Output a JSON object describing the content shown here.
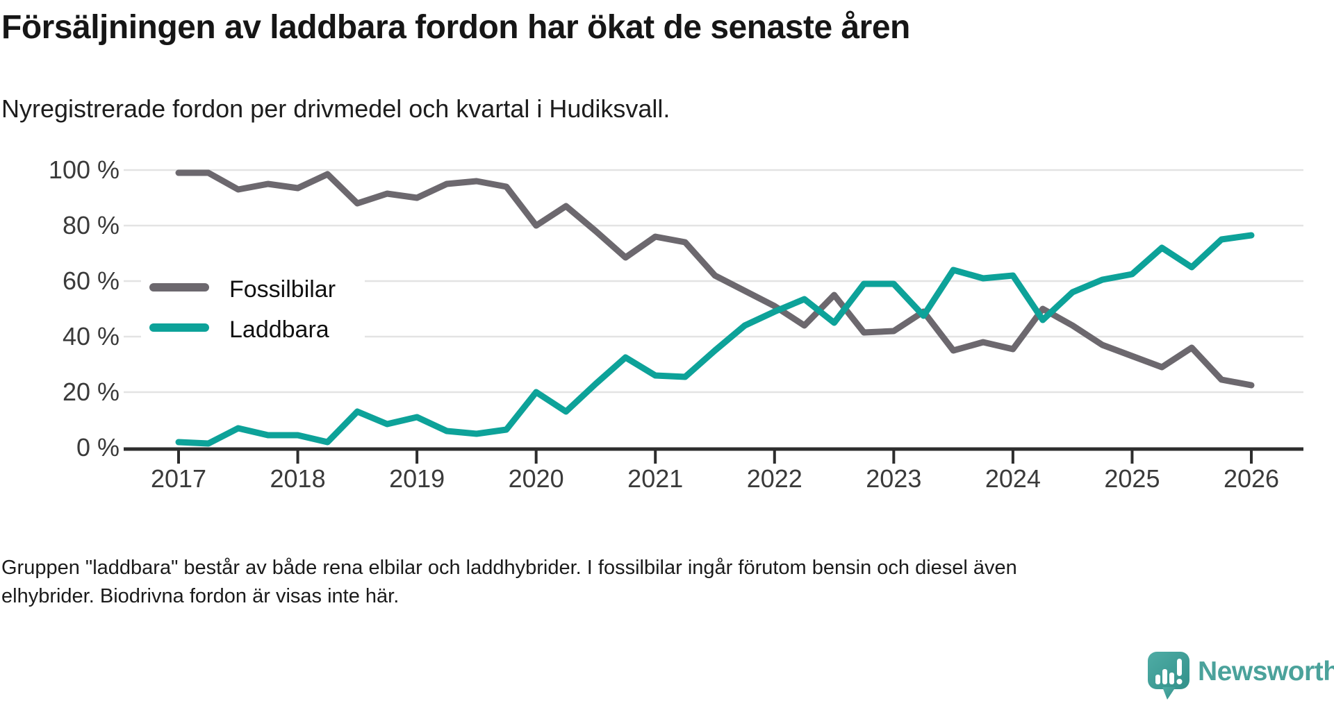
{
  "header": {
    "title": "Försäljningen av laddbara fordon har ökat de senaste åren",
    "subtitle": "Nyregistrerade fordon per drivmedel och kvartal i Hudiksvall."
  },
  "chart_data": {
    "type": "line",
    "title": "Nyregistrerade fordon per drivmedel och kvartal i Hudiksvall",
    "x": [
      "2017 Q1",
      "2017 Q2",
      "2017 Q3",
      "2017 Q4",
      "2018 Q1",
      "2018 Q2",
      "2018 Q3",
      "2018 Q4",
      "2019 Q1",
      "2019 Q2",
      "2019 Q3",
      "2019 Q4",
      "2020 Q1",
      "2020 Q2",
      "2020 Q3",
      "2020 Q4",
      "2021 Q1",
      "2021 Q2",
      "2021 Q3",
      "2021 Q4",
      "2022 Q1",
      "2022 Q2",
      "2022 Q3",
      "2022 Q4",
      "2023 Q1",
      "2023 Q2",
      "2023 Q3",
      "2023 Q4",
      "2024 Q1",
      "2024 Q2",
      "2024 Q3",
      "2024 Q4",
      "2025 Q1",
      "2025 Q2",
      "2025 Q3",
      "2025 Q4",
      "2026 Q1"
    ],
    "series": [
      {
        "name": "Fossilbilar",
        "color": "#6c686e",
        "values": [
          99,
          99,
          93,
          95,
          93.5,
          98.5,
          88,
          91.5,
          90,
          95,
          96,
          94,
          80,
          87,
          78,
          68.5,
          76,
          74,
          62,
          56.5,
          51,
          44,
          55,
          41.5,
          42,
          49,
          35,
          38,
          35.5,
          50,
          44,
          37,
          33,
          29,
          36,
          24.5,
          22.5
        ]
      },
      {
        "name": "Laddbara",
        "color": "#0da299",
        "values": [
          2,
          1.5,
          7,
          4.5,
          4.5,
          2,
          13,
          8.5,
          11,
          6,
          5,
          6.5,
          20,
          13,
          23,
          32.5,
          26,
          25.5,
          35,
          44,
          49,
          53.5,
          45,
          59,
          59,
          47.5,
          64,
          61,
          62,
          46,
          56,
          60.5,
          62.5,
          72,
          65,
          75,
          76.5
        ]
      }
    ],
    "ylim": [
      0,
      100
    ],
    "yticks": [
      {
        "value": 100,
        "label": "100 %"
      },
      {
        "value": 80,
        "label": "80 %"
      },
      {
        "value": 60,
        "label": "60 %"
      },
      {
        "value": 40,
        "label": "40 %"
      },
      {
        "value": 20,
        "label": "20 %"
      },
      {
        "value": 0,
        "label": "0 %"
      }
    ],
    "xticks": [
      "2017",
      "2018",
      "2019",
      "2020",
      "2021",
      "2022",
      "2023",
      "2024",
      "2025",
      "2026"
    ],
    "grid": "horizontal",
    "legend_position": "inside-upper-left"
  },
  "footnote": {
    "line1": "Gruppen \"laddbara\" består av både rena elbilar och laddhybrider. I fossilbilar ingår förutom bensin och diesel även",
    "line2": "elhybrider. Biodrivna fordon är visas inte här."
  },
  "branding": {
    "logo_text": "Newsworthy",
    "logo_color": "#4ba29b",
    "icon_color_top": "#4faca5",
    "icon_color_bottom": "#32918a"
  },
  "colors": {
    "gridline": "#e3e3e3",
    "axis": "#2d2d2d",
    "fossil": "#6c686e",
    "chargeable": "#0da299"
  }
}
